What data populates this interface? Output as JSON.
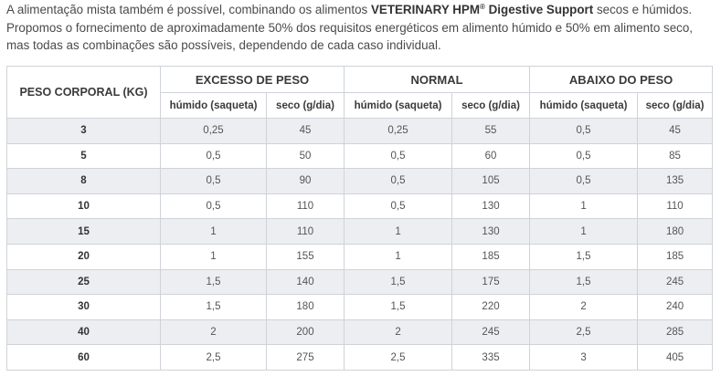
{
  "intro": {
    "line1_pre": "A alimentação mista também é possível, combinando os alimentos ",
    "brand": "VETERINARY HPM",
    "reg_mark": "®",
    "product": " Digestive Support",
    "line1_post": " secos e húmidos.",
    "line2": "Propomos o fornecimento de aproximadamente 50% dos requisitos energéticos em alimento húmido e 50% em alimento seco, mas todas as combinações são possíveis, dependendo de cada caso individual."
  },
  "table": {
    "weight_header": "PESO CORPORAL (KG)",
    "groups": [
      "EXCESSO DE PESO",
      "NORMAL",
      "ABAIXO DO PESO"
    ],
    "sub_headers": [
      "húmido (saqueta)",
      "seco (g/dia)",
      "húmido (saqueta)",
      "seco (g/dia)",
      "húmido (saqueta)",
      "seco (g/dia)"
    ],
    "rows": [
      {
        "weight": "3",
        "cells": [
          "0,25",
          "45",
          "0,25",
          "55",
          "0,5",
          "45"
        ]
      },
      {
        "weight": "5",
        "cells": [
          "0,5",
          "50",
          "0,5",
          "60",
          "0,5",
          "85"
        ]
      },
      {
        "weight": "8",
        "cells": [
          "0,5",
          "90",
          "0,5",
          "105",
          "0,5",
          "135"
        ]
      },
      {
        "weight": "10",
        "cells": [
          "0,5",
          "110",
          "0,5",
          "130",
          "1",
          "110"
        ]
      },
      {
        "weight": "15",
        "cells": [
          "1",
          "110",
          "1",
          "130",
          "1",
          "180"
        ]
      },
      {
        "weight": "20",
        "cells": [
          "1",
          "155",
          "1",
          "185",
          "1,5",
          "185"
        ]
      },
      {
        "weight": "25",
        "cells": [
          "1,5",
          "140",
          "1,5",
          "175",
          "1,5",
          "245"
        ]
      },
      {
        "weight": "30",
        "cells": [
          "1,5",
          "180",
          "1,5",
          "220",
          "2",
          "240"
        ]
      },
      {
        "weight": "40",
        "cells": [
          "2",
          "200",
          "2",
          "245",
          "2,5",
          "285"
        ]
      },
      {
        "weight": "60",
        "cells": [
          "2,5",
          "275",
          "2,5",
          "335",
          "3",
          "405"
        ]
      }
    ]
  },
  "colors": {
    "row_shade": "#eceef1",
    "border": "#cfd3d8"
  }
}
